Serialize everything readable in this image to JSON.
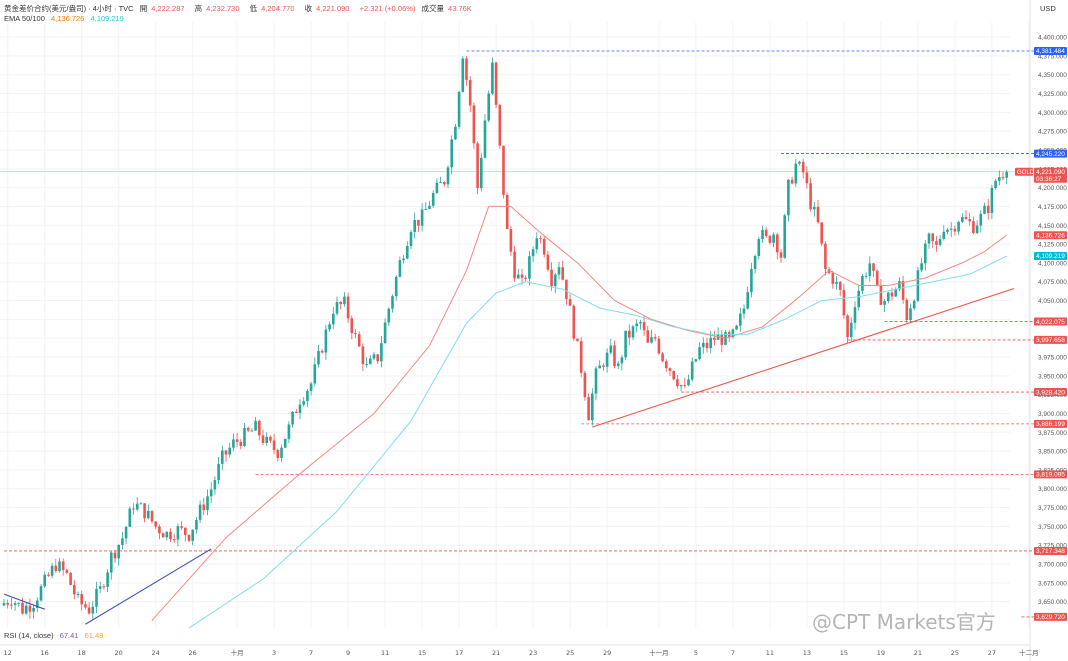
{
  "header": {
    "line1": {
      "symbol": "黄金差价合约(美元/盎司) · 4小时 · TVC",
      "open_label": "開",
      "open_value": "4,222.287",
      "high_label": "高",
      "high_value": "4,232.730",
      "low_label": "低",
      "low_value": "4,204.770",
      "close_label": "收",
      "close_value": "4,221.090",
      "change": "+2.321 (+0.06%)",
      "volume_label": "成交量",
      "volume_value": "43.76K"
    },
    "line2": {
      "label": "EMA 50/100",
      "value1": "4,136.726",
      "value2": "4,109.219"
    }
  },
  "rsi": {
    "label": "RSI (14, close)",
    "value1": "67.41",
    "value2": "61.48"
  },
  "currency": "USD",
  "watermark": "@CPT Markets官方",
  "colors": {
    "up": "#26a69a",
    "down": "#ef5350",
    "ema50": "#f28b82",
    "ema100": "#80deea",
    "trend": "#ef5350",
    "blue_trend": "#3f51b5",
    "support": "#ef5350",
    "resistance": "#2962ff"
  },
  "chart_data": {
    "type": "candlestick",
    "title": "黄金差价合约(美元/盎司) · 4小时 · TVC",
    "ylabel": "USD",
    "ylim": [
      3615,
      4420
    ],
    "y_ticks": [
      3650,
      3675,
      3700,
      3725,
      3750,
      3775,
      3800,
      3825,
      3850,
      3875,
      3900,
      3925,
      3950,
      3975,
      4000,
      4025,
      4050,
      4075,
      4100,
      4125,
      4150,
      4175,
      4200,
      4225,
      4250,
      4275,
      4300,
      4325,
      4350,
      4375,
      4400
    ],
    "x_ticks": [
      {
        "label": "12",
        "i": 1
      },
      {
        "label": "16",
        "i": 11
      },
      {
        "label": "18",
        "i": 21
      },
      {
        "label": "20",
        "i": 31
      },
      {
        "label": "24",
        "i": 41
      },
      {
        "label": "26",
        "i": 51
      },
      {
        "label": "十月",
        "i": 63
      },
      {
        "label": "3",
        "i": 73
      },
      {
        "label": "7",
        "i": 83
      },
      {
        "label": "9",
        "i": 93
      },
      {
        "label": "11",
        "i": 103
      },
      {
        "label": "15",
        "i": 113
      },
      {
        "label": "17",
        "i": 123
      },
      {
        "label": "21",
        "i": 133
      },
      {
        "label": "23",
        "i": 143
      },
      {
        "label": "25",
        "i": 153
      },
      {
        "label": "29",
        "i": 163
      },
      {
        "label": "十一月",
        "i": 177
      },
      {
        "label": "5",
        "i": 187
      },
      {
        "label": "7",
        "i": 197
      },
      {
        "label": "11",
        "i": 207
      },
      {
        "label": "13",
        "i": 217
      },
      {
        "label": "15",
        "i": 227
      },
      {
        "label": "19",
        "i": 237
      },
      {
        "label": "21",
        "i": 247
      },
      {
        "label": "25",
        "i": 257
      },
      {
        "label": "27",
        "i": 267
      },
      {
        "label": "十二月",
        "i": 277
      }
    ],
    "control_points": [
      [
        0,
        3645
      ],
      [
        3,
        3655
      ],
      [
        6,
        3640
      ],
      [
        9,
        3650
      ],
      [
        12,
        3675
      ],
      [
        15,
        3700
      ],
      [
        18,
        3685
      ],
      [
        21,
        3650
      ],
      [
        24,
        3640
      ],
      [
        27,
        3665
      ],
      [
        30,
        3710
      ],
      [
        33,
        3735
      ],
      [
        36,
        3780
      ],
      [
        39,
        3770
      ],
      [
        42,
        3750
      ],
      [
        45,
        3740
      ],
      [
        48,
        3745
      ],
      [
        51,
        3740
      ],
      [
        54,
        3770
      ],
      [
        57,
        3800
      ],
      [
        60,
        3840
      ],
      [
        63,
        3860
      ],
      [
        66,
        3870
      ],
      [
        69,
        3880
      ],
      [
        72,
        3860
      ],
      [
        75,
        3850
      ],
      [
        78,
        3880
      ],
      [
        81,
        3920
      ],
      [
        84,
        3940
      ],
      [
        87,
        3990
      ],
      [
        90,
        4040
      ],
      [
        93,
        4045
      ],
      [
        96,
        4000
      ],
      [
        99,
        3960
      ],
      [
        102,
        3975
      ],
      [
        105,
        4040
      ],
      [
        108,
        4100
      ],
      [
        111,
        4150
      ],
      [
        114,
        4160
      ],
      [
        117,
        4190
      ],
      [
        120,
        4210
      ],
      [
        123,
        4290
      ],
      [
        125,
        4380
      ],
      [
        127,
        4310
      ],
      [
        129,
        4200
      ],
      [
        131,
        4290
      ],
      [
        133,
        4360
      ],
      [
        135,
        4250
      ],
      [
        137,
        4140
      ],
      [
        139,
        4090
      ],
      [
        141,
        4070
      ],
      [
        143,
        4100
      ],
      [
        145,
        4140
      ],
      [
        147,
        4120
      ],
      [
        149,
        4080
      ],
      [
        151,
        4100
      ],
      [
        153,
        4060
      ],
      [
        155,
        4010
      ],
      [
        157,
        3960
      ],
      [
        159,
        3900
      ],
      [
        161,
        3950
      ],
      [
        163,
        3970
      ],
      [
        165,
        3980
      ],
      [
        167,
        3960
      ],
      [
        169,
        4000
      ],
      [
        171,
        4010
      ],
      [
        173,
        4020
      ],
      [
        175,
        3990
      ],
      [
        177,
        4000
      ],
      [
        179,
        3975
      ],
      [
        181,
        3960
      ],
      [
        183,
        3945
      ],
      [
        185,
        3930
      ],
      [
        187,
        3960
      ],
      [
        189,
        3985
      ],
      [
        191,
        3990
      ],
      [
        193,
        4000
      ],
      [
        195,
        4000
      ],
      [
        197,
        3995
      ],
      [
        199,
        4010
      ],
      [
        201,
        4040
      ],
      [
        203,
        4100
      ],
      [
        205,
        4140
      ],
      [
        207,
        4130
      ],
      [
        209,
        4140
      ],
      [
        211,
        4110
      ],
      [
        213,
        4200
      ],
      [
        215,
        4230
      ],
      [
        217,
        4220
      ],
      [
        219,
        4180
      ],
      [
        221,
        4150
      ],
      [
        223,
        4090
      ],
      [
        225,
        4080
      ],
      [
        227,
        4060
      ],
      [
        229,
        4000
      ],
      [
        231,
        4050
      ],
      [
        233,
        4080
      ],
      [
        235,
        4100
      ],
      [
        237,
        4060
      ],
      [
        239,
        4050
      ],
      [
        241,
        4060
      ],
      [
        243,
        4070
      ],
      [
        245,
        4030
      ],
      [
        247,
        4060
      ],
      [
        249,
        4100
      ],
      [
        251,
        4130
      ],
      [
        253,
        4120
      ],
      [
        255,
        4150
      ],
      [
        257,
        4145
      ],
      [
        259,
        4160
      ],
      [
        261,
        4155
      ],
      [
        263,
        4150
      ],
      [
        265,
        4160
      ],
      [
        267,
        4175
      ],
      [
        269,
        4210
      ],
      [
        271,
        4221
      ]
    ],
    "n_candles": 272,
    "ema50_points": [
      [
        40,
        3625
      ],
      [
        60,
        3735
      ],
      [
        80,
        3820
      ],
      [
        100,
        3900
      ],
      [
        115,
        3990
      ],
      [
        125,
        4090
      ],
      [
        131,
        4175
      ],
      [
        137,
        4175
      ],
      [
        145,
        4140
      ],
      [
        155,
        4100
      ],
      [
        165,
        4050
      ],
      [
        175,
        4025
      ],
      [
        185,
        4010
      ],
      [
        195,
        4000
      ],
      [
        205,
        4015
      ],
      [
        215,
        4055
      ],
      [
        223,
        4090
      ],
      [
        231,
        4070
      ],
      [
        239,
        4070
      ],
      [
        249,
        4080
      ],
      [
        259,
        4100
      ],
      [
        265,
        4115
      ],
      [
        271,
        4137
      ]
    ],
    "ema100_points": [
      [
        50,
        3615
      ],
      [
        70,
        3680
      ],
      [
        90,
        3770
      ],
      [
        110,
        3890
      ],
      [
        125,
        4020
      ],
      [
        133,
        4060
      ],
      [
        141,
        4075
      ],
      [
        151,
        4065
      ],
      [
        161,
        4040
      ],
      [
        171,
        4030
      ],
      [
        181,
        4015
      ],
      [
        191,
        4005
      ],
      [
        201,
        4005
      ],
      [
        211,
        4025
      ],
      [
        221,
        4050
      ],
      [
        231,
        4055
      ],
      [
        241,
        4065
      ],
      [
        251,
        4075
      ],
      [
        261,
        4085
      ],
      [
        271,
        4109
      ]
    ],
    "trendlines": [
      {
        "from": [
          159,
          3882
        ],
        "to": [
          273,
          4066
        ],
        "color": "trend"
      },
      {
        "from": [
          22,
          3620
        ],
        "to": [
          56,
          3720
        ],
        "color": "blue_trend"
      },
      {
        "from": [
          0,
          3660
        ],
        "to": [
          11,
          3640
        ],
        "color": "blue_trend"
      }
    ],
    "horizontal_levels": [
      {
        "value": 4381.484,
        "label": "4,381.484",
        "kind": "resistance",
        "from_i": 125
      },
      {
        "value": 4245.22,
        "label": "4,245.220",
        "kind": "resistance",
        "from_i": 210
      },
      {
        "value": 4022.075,
        "label": "4,022.075",
        "kind": "support",
        "from_i": 238
      },
      {
        "value": 3997.658,
        "label": "3,997.658",
        "kind": "support",
        "from_i": 228
      },
      {
        "value": 3928.42,
        "label": "3,928.420",
        "kind": "support",
        "from_i": 183
      },
      {
        "value": 3886.199,
        "label": "3,886.199",
        "kind": "support",
        "from_i": 156
      },
      {
        "value": 3819.095,
        "label": "3,819.095",
        "kind": "support",
        "from_i": 68
      },
      {
        "value": 3717.348,
        "label": "3,717.348",
        "kind": "support",
        "from_i": 0
      },
      {
        "value": 3629.72,
        "label": "3,629.720",
        "kind": "support",
        "from_i": 275
      }
    ],
    "price_tags": [
      {
        "value": 4221.09,
        "label": "4,221.090",
        "sub": "03:36:27",
        "symbol": "GOLD",
        "color": "down"
      },
      {
        "value": 4136.726,
        "label": "4,136.726",
        "color": "down"
      },
      {
        "value": 4109.219,
        "label": "4,109.219",
        "color": "ema100"
      }
    ],
    "grid": true,
    "legend": "top-left"
  }
}
